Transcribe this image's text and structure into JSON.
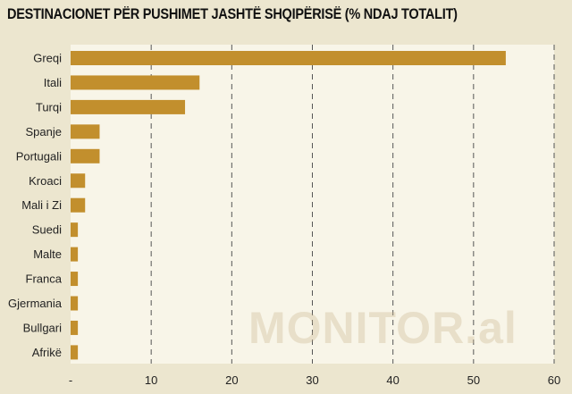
{
  "chart_data": {
    "type": "bar",
    "orientation": "horizontal",
    "title": "DESTINACIONET PËR PUSHIMET JASHTË SHQIPËRISË (% NDAJ TOTALIT)",
    "categories": [
      "Greqi",
      "Itali",
      "Turqi",
      "Spanje",
      "Portugali",
      "Kroaci",
      "Mali i Zi",
      "Suedi",
      "Malte",
      "Franca",
      "Gjermania",
      "Bullgari",
      "Afrikë"
    ],
    "values": [
      54,
      16,
      14.2,
      3.6,
      3.6,
      1.8,
      1.8,
      0.9,
      0.9,
      0.9,
      0.9,
      0.9,
      0.9
    ],
    "xlim": [
      0,
      60
    ],
    "xticks": [
      0,
      10,
      20,
      30,
      40,
      50,
      60
    ],
    "xtick_labels": [
      "-",
      "10",
      "20",
      "30",
      "40",
      "50",
      "60"
    ],
    "grid": "vertical dashed",
    "xlabel": "",
    "ylabel": ""
  },
  "colors": {
    "background": "#ece6cf",
    "plot_background": "#f8f5e8",
    "bar": "#c28f2d",
    "grid": "#555555"
  },
  "watermark": "MONITOR.al"
}
